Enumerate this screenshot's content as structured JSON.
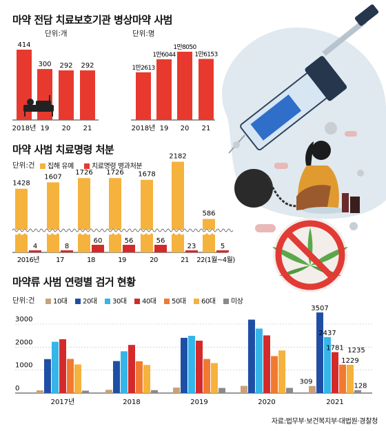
{
  "source": "자료:법무부·보건복지부·대법원·경찰청",
  "colors": {
    "red": "#e8392f",
    "orange": "#f5b23d",
    "tan": "#c9a27a",
    "blue_dark": "#1f4fa5",
    "blue": "#2f8fd6",
    "blue_light": "#36b5e8",
    "red2": "#d42a2a",
    "orange2": "#f07a30",
    "gray": "#8a8a8a"
  },
  "chart_data": [
    {
      "type": "bar",
      "title": "마약 전담 치료보호기관 병상",
      "unit": "단위:개",
      "categories": [
        "2018년",
        "19",
        "20",
        "21"
      ],
      "values": [
        414,
        300,
        292,
        292
      ],
      "value_labels": [
        "414",
        "300",
        "292",
        "292"
      ]
    },
    {
      "type": "bar",
      "title": "마약 사범",
      "unit": "단위:명",
      "categories": [
        "2018년",
        "19",
        "20",
        "21"
      ],
      "values": [
        12613,
        16044,
        18050,
        16153
      ],
      "value_labels": [
        "1만2613",
        "1만6044",
        "1만8050",
        "1만6153"
      ]
    },
    {
      "type": "bar",
      "title": "마약 사범 치료명령 처분",
      "unit": "단위:건",
      "categories": [
        "2016년",
        "17",
        "18",
        "19",
        "20",
        "21",
        "22(1월~4월)"
      ],
      "series": [
        {
          "name": "집해 유예",
          "values": [
            1428,
            1607,
            1726,
            1726,
            1678,
            2182,
            586
          ]
        },
        {
          "name": "치료명령 병과처분",
          "values": [
            4,
            8,
            60,
            56,
            56,
            23,
            5
          ]
        }
      ],
      "axis_break": true
    },
    {
      "type": "bar",
      "title": "마약류 사범 연령별 검거 현황",
      "unit": "단위:건",
      "categories": [
        "2017년",
        "2018",
        "2019",
        "2020",
        "2021"
      ],
      "ylim": [
        0,
        3600
      ],
      "yticks": [
        "0",
        "1000",
        "2000",
        "3000"
      ],
      "series": [
        {
          "name": "10대",
          "values": [
            119,
            143,
            239,
            313,
            309
          ]
        },
        {
          "name": "20대",
          "values": [
            1478,
            1392,
            2403,
            3195,
            3507
          ]
        },
        {
          "name": "30대",
          "values": [
            2231,
            1819,
            2491,
            2806,
            2437
          ]
        },
        {
          "name": "40대",
          "values": [
            2342,
            2094,
            2280,
            2509,
            1781
          ]
        },
        {
          "name": "50대",
          "values": [
            1487,
            1381,
            1483,
            1608,
            1235
          ]
        },
        {
          "name": "60대",
          "values": [
            1245,
            1221,
            1306,
            1854,
            1229
          ]
        },
        {
          "name": "미상",
          "values": [
            106,
            128,
            223,
            225,
            128
          ]
        }
      ],
      "labeled_2021": [
        "309",
        "3507",
        "2437",
        "1781",
        "1235",
        "1229",
        "128"
      ]
    }
  ]
}
